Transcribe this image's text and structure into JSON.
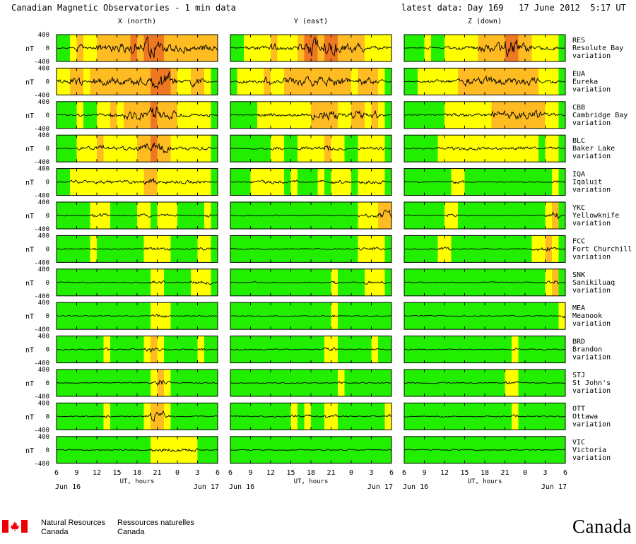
{
  "header": {
    "title": "Canadian Magnetic Observatories - 1 min data",
    "latest": "latest data: Day 169   17 June 2012  5:17 UT"
  },
  "chart_data": {
    "type": "line",
    "columns": [
      {
        "label": "X (north)"
      },
      {
        "label": "Y (east)"
      },
      {
        "label": "Z (down)"
      }
    ],
    "ylabel": "nT",
    "ylim": [
      -400,
      400
    ],
    "yticks": [
      "400",
      "0",
      "-400"
    ],
    "x_ticks": [
      "6",
      "9",
      "12",
      "15",
      "18",
      "21",
      "0",
      "3",
      "6"
    ],
    "xlabel": "UT, hours",
    "date_start": "Jun 16",
    "date_end": "Jun 17",
    "activity_colors": {
      "quiet": "#22ee00",
      "unsettled": "#ffff00",
      "active": "#ffbb22",
      "storm": "#ee7722"
    },
    "stations": [
      {
        "code": "RES",
        "name": "Resolute Bay",
        "suffix": "variation",
        "activity": [
          [
            0,
            0,
            1,
            2,
            1,
            1,
            2,
            2,
            2,
            2,
            2,
            3,
            2,
            3,
            3,
            3,
            2,
            2,
            2,
            2,
            2,
            2,
            2,
            2
          ],
          [
            0,
            0,
            1,
            1,
            1,
            1,
            2,
            1,
            1,
            1,
            2,
            3,
            3,
            2,
            3,
            3,
            2,
            2,
            2,
            2,
            1,
            1,
            1,
            1
          ],
          [
            0,
            0,
            0,
            1,
            0,
            0,
            1,
            1,
            1,
            1,
            1,
            2,
            2,
            2,
            2,
            3,
            3,
            2,
            2,
            1,
            1,
            1,
            1,
            0
          ]
        ]
      },
      {
        "code": "EUA",
        "name": "Eureka",
        "suffix": "variation",
        "activity": [
          [
            1,
            1,
            2,
            2,
            1,
            2,
            2,
            2,
            2,
            2,
            2,
            2,
            2,
            2,
            3,
            3,
            3,
            2,
            1,
            1,
            2,
            2,
            1,
            0
          ],
          [
            0,
            1,
            1,
            1,
            1,
            2,
            1,
            1,
            2,
            2,
            2,
            2,
            2,
            2,
            2,
            2,
            2,
            2,
            1,
            2,
            2,
            2,
            1,
            0
          ],
          [
            0,
            0,
            1,
            1,
            1,
            1,
            1,
            1,
            2,
            2,
            2,
            2,
            2,
            2,
            2,
            2,
            2,
            2,
            2,
            2,
            1,
            1,
            1,
            0
          ]
        ]
      },
      {
        "code": "CBB",
        "name": "Cambridge Bay",
        "suffix": "variation",
        "activity": [
          [
            0,
            0,
            0,
            1,
            0,
            0,
            1,
            1,
            2,
            1,
            2,
            2,
            2,
            2,
            3,
            2,
            2,
            2,
            1,
            1,
            1,
            1,
            1,
            0
          ],
          [
            0,
            0,
            0,
            0,
            1,
            1,
            1,
            1,
            1,
            1,
            1,
            1,
            2,
            2,
            2,
            2,
            1,
            1,
            2,
            2,
            1,
            2,
            1,
            0
          ],
          [
            0,
            0,
            0,
            0,
            0,
            0,
            1,
            1,
            1,
            1,
            1,
            1,
            1,
            2,
            2,
            2,
            2,
            2,
            2,
            2,
            2,
            1,
            1,
            0
          ]
        ]
      },
      {
        "code": "BLC",
        "name": "Baker Lake",
        "suffix": "variation",
        "activity": [
          [
            0,
            0,
            0,
            1,
            1,
            1,
            2,
            1,
            1,
            1,
            1,
            1,
            2,
            2,
            3,
            2,
            2,
            1,
            1,
            1,
            1,
            1,
            1,
            0
          ],
          [
            0,
            0,
            0,
            0,
            0,
            0,
            1,
            1,
            0,
            0,
            1,
            1,
            1,
            1,
            2,
            1,
            1,
            0,
            0,
            1,
            1,
            1,
            1,
            0
          ],
          [
            0,
            0,
            0,
            0,
            0,
            1,
            1,
            1,
            1,
            1,
            1,
            1,
            1,
            1,
            1,
            1,
            1,
            1,
            1,
            1,
            0,
            1,
            1,
            0
          ]
        ]
      },
      {
        "code": "IQA",
        "name": "Iqaluit",
        "suffix": "variation",
        "activity": [
          [
            0,
            0,
            1,
            1,
            1,
            1,
            1,
            1,
            1,
            1,
            1,
            1,
            1,
            2,
            2,
            1,
            1,
            1,
            1,
            1,
            1,
            1,
            1,
            0
          ],
          [
            0,
            0,
            0,
            1,
            1,
            1,
            1,
            1,
            0,
            1,
            0,
            0,
            0,
            1,
            0,
            1,
            1,
            1,
            0,
            1,
            1,
            1,
            1,
            0
          ],
          [
            0,
            0,
            0,
            0,
            0,
            0,
            0,
            1,
            1,
            0,
            0,
            0,
            0,
            0,
            0,
            0,
            0,
            0,
            0,
            0,
            0,
            0,
            1,
            0
          ]
        ]
      },
      {
        "code": "YKC",
        "name": "Yellowknife",
        "suffix": "variation",
        "activity": [
          [
            0,
            0,
            0,
            0,
            0,
            1,
            1,
            1,
            0,
            0,
            0,
            0,
            1,
            1,
            0,
            1,
            1,
            1,
            0,
            0,
            0,
            0,
            1,
            0
          ],
          [
            0,
            0,
            0,
            0,
            0,
            0,
            0,
            0,
            0,
            0,
            0,
            0,
            0,
            0,
            0,
            0,
            0,
            0,
            0,
            1,
            1,
            1,
            2,
            2
          ],
          [
            0,
            0,
            0,
            0,
            0,
            0,
            1,
            1,
            0,
            0,
            0,
            0,
            0,
            0,
            0,
            0,
            0,
            0,
            0,
            0,
            0,
            1,
            2,
            0
          ]
        ]
      },
      {
        "code": "FCC",
        "name": "Fort Churchill",
        "suffix": "variation",
        "activity": [
          [
            0,
            0,
            0,
            0,
            0,
            1,
            0,
            0,
            0,
            0,
            0,
            0,
            0,
            1,
            1,
            1,
            1,
            0,
            0,
            0,
            0,
            1,
            1,
            0
          ],
          [
            0,
            0,
            0,
            0,
            0,
            0,
            0,
            0,
            0,
            0,
            0,
            0,
            0,
            0,
            0,
            0,
            0,
            0,
            0,
            1,
            1,
            1,
            1,
            0
          ],
          [
            0,
            0,
            0,
            0,
            0,
            1,
            1,
            0,
            0,
            0,
            0,
            0,
            0,
            0,
            0,
            0,
            0,
            0,
            0,
            1,
            1,
            2,
            1,
            0
          ]
        ]
      },
      {
        "code": "SNK",
        "name": "Sanikiluaq",
        "suffix": "variation",
        "activity": [
          [
            0,
            0,
            0,
            0,
            0,
            0,
            0,
            0,
            0,
            0,
            0,
            0,
            0,
            0,
            1,
            1,
            0,
            0,
            0,
            0,
            1,
            1,
            1,
            0
          ],
          [
            0,
            0,
            0,
            0,
            0,
            0,
            0,
            0,
            0,
            0,
            0,
            0,
            0,
            0,
            0,
            1,
            0,
            0,
            0,
            0,
            1,
            1,
            1,
            0
          ],
          [
            0,
            0,
            0,
            0,
            0,
            0,
            0,
            0,
            0,
            0,
            0,
            0,
            0,
            0,
            0,
            0,
            0,
            0,
            0,
            0,
            0,
            1,
            2,
            0
          ]
        ]
      },
      {
        "code": "MEA",
        "name": "Meanook",
        "suffix": "variation",
        "activity": [
          [
            0,
            0,
            0,
            0,
            0,
            0,
            0,
            0,
            0,
            0,
            0,
            0,
            0,
            0,
            1,
            1,
            1,
            0,
            0,
            0,
            0,
            0,
            0,
            0
          ],
          [
            0,
            0,
            0,
            0,
            0,
            0,
            0,
            0,
            0,
            0,
            0,
            0,
            0,
            0,
            0,
            1,
            0,
            0,
            0,
            0,
            0,
            0,
            0,
            0
          ],
          [
            0,
            0,
            0,
            0,
            0,
            0,
            0,
            0,
            0,
            0,
            0,
            0,
            0,
            0,
            0,
            0,
            0,
            0,
            0,
            0,
            0,
            0,
            0,
            1
          ]
        ]
      },
      {
        "code": "BRD",
        "name": "Brandon",
        "suffix": "variation",
        "activity": [
          [
            0,
            0,
            0,
            0,
            0,
            0,
            0,
            1,
            0,
            0,
            0,
            0,
            0,
            1,
            2,
            1,
            0,
            0,
            0,
            0,
            0,
            1,
            0,
            0
          ],
          [
            0,
            0,
            0,
            0,
            0,
            0,
            0,
            0,
            0,
            0,
            0,
            0,
            0,
            0,
            1,
            1,
            0,
            0,
            0,
            0,
            0,
            1,
            0,
            0
          ],
          [
            0,
            0,
            0,
            0,
            0,
            0,
            0,
            0,
            0,
            0,
            0,
            0,
            0,
            0,
            0,
            0,
            1,
            0,
            0,
            0,
            0,
            0,
            0,
            0
          ]
        ]
      },
      {
        "code": "STJ",
        "name": "St John's",
        "suffix": "variation",
        "activity": [
          [
            0,
            0,
            0,
            0,
            0,
            0,
            0,
            0,
            0,
            0,
            0,
            0,
            0,
            0,
            1,
            2,
            1,
            0,
            0,
            0,
            0,
            0,
            0,
            0
          ],
          [
            0,
            0,
            0,
            0,
            0,
            0,
            0,
            0,
            0,
            0,
            0,
            0,
            0,
            0,
            0,
            0,
            1,
            0,
            0,
            0,
            0,
            0,
            0,
            0
          ],
          [
            0,
            0,
            0,
            0,
            0,
            0,
            0,
            0,
            0,
            0,
            0,
            0,
            0,
            0,
            0,
            1,
            1,
            0,
            0,
            0,
            0,
            0,
            0,
            0
          ]
        ]
      },
      {
        "code": "OTT",
        "name": "Ottawa",
        "suffix": "variation",
        "activity": [
          [
            0,
            0,
            0,
            0,
            0,
            0,
            0,
            1,
            0,
            0,
            0,
            0,
            0,
            1,
            2,
            2,
            1,
            0,
            0,
            0,
            0,
            0,
            0,
            0
          ],
          [
            0,
            0,
            0,
            0,
            0,
            0,
            0,
            0,
            0,
            1,
            0,
            1,
            0,
            0,
            1,
            1,
            0,
            0,
            0,
            0,
            0,
            0,
            0,
            1
          ],
          [
            0,
            0,
            0,
            0,
            0,
            0,
            0,
            0,
            0,
            0,
            0,
            0,
            0,
            0,
            0,
            0,
            1,
            0,
            0,
            0,
            0,
            0,
            0,
            0
          ]
        ]
      },
      {
        "code": "VIC",
        "name": "Victoria",
        "suffix": "variation",
        "activity": [
          [
            0,
            0,
            0,
            0,
            0,
            0,
            0,
            0,
            0,
            0,
            0,
            0,
            0,
            0,
            1,
            1,
            1,
            1,
            1,
            1,
            1,
            0,
            0,
            0
          ],
          [
            0,
            0,
            0,
            0,
            0,
            0,
            0,
            0,
            0,
            0,
            0,
            0,
            0,
            0,
            0,
            0,
            0,
            0,
            0,
            0,
            0,
            0,
            0,
            0
          ],
          [
            0,
            0,
            0,
            0,
            0,
            0,
            0,
            0,
            0,
            0,
            0,
            0,
            0,
            0,
            0,
            0,
            0,
            0,
            0,
            0,
            0,
            0,
            0,
            0
          ]
        ]
      }
    ]
  },
  "footer": {
    "nrcan_en_1": "Natural Resources",
    "nrcan_en_2": "Canada",
    "nrcan_fr_1": "Ressources naturelles",
    "nrcan_fr_2": "Canada",
    "wordmark": "Canada",
    "flag_color": "#ee0000"
  }
}
